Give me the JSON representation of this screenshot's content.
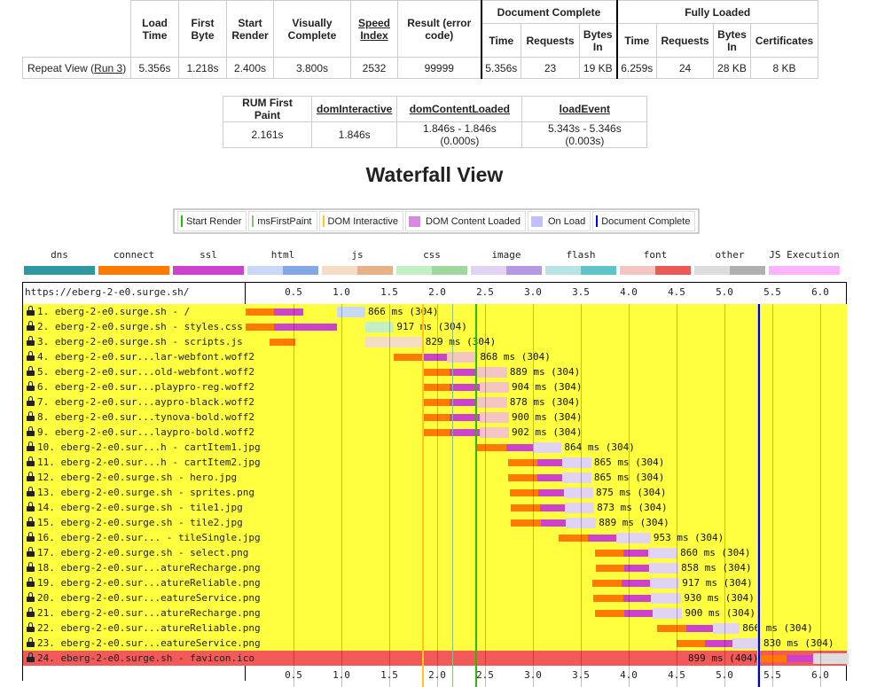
{
  "summary": {
    "headers": [
      "Load Time",
      "First Byte",
      "Start Render",
      "Visually Complete",
      "Speed Index",
      "Result (error code)"
    ],
    "groups": {
      "doc_complete": "Document Complete",
      "fully_loaded": "Fully Loaded"
    },
    "doc_headers": [
      "Time",
      "Requests",
      "Bytes In"
    ],
    "full_headers": [
      "Time",
      "Requests",
      "Bytes In",
      "Certificates"
    ],
    "row_label": "Repeat View (",
    "row_link": "Run 3",
    "row_label_end": ")",
    "values": [
      "5.356s",
      "1.218s",
      "2.400s",
      "3.800s",
      "2532",
      "99999"
    ],
    "doc_values": [
      "5.356s",
      "23",
      "19 KB"
    ],
    "full_values": [
      "6.259s",
      "24",
      "28 KB",
      "8 KB"
    ]
  },
  "rum": {
    "headers": [
      "RUM First Paint",
      "domInteractive",
      "domContentLoaded",
      "loadEvent"
    ],
    "values": [
      "2.161s",
      "1.846s",
      "1.846s - 1.846s (0.000s)",
      "5.343s - 5.346s (0.003s)"
    ]
  },
  "title": "Waterfall View",
  "legend": [
    {
      "label": "Start Render",
      "color": "#28bc00",
      "kind": "line"
    },
    {
      "label": "msFirstPaint",
      "color": "#8fbc83",
      "kind": "line"
    },
    {
      "label": "DOM Interactive",
      "color": "#ffc61a",
      "kind": "line"
    },
    {
      "label": "DOM Content Loaded",
      "color": "#d888df",
      "kind": "box"
    },
    {
      "label": "On Load",
      "color": "#c0c0ff",
      "kind": "box"
    },
    {
      "label": "Document Complete",
      "color": "#0000ff",
      "kind": "line"
    }
  ],
  "types": [
    {
      "label": "dns",
      "colors": [
        "#30979e"
      ]
    },
    {
      "label": "connect",
      "colors": [
        "#ff7b00"
      ]
    },
    {
      "label": "ssl",
      "colors": [
        "#cc42cd"
      ]
    },
    {
      "label": "html",
      "colors": [
        "#c9d8f4",
        "#82a8e6"
      ]
    },
    {
      "label": "js",
      "colors": [
        "#f4dcc5",
        "#e6b286"
      ]
    },
    {
      "label": "css",
      "colors": [
        "#c4efc4",
        "#9ed89e"
      ]
    },
    {
      "label": "image",
      "colors": [
        "#e0d3f4",
        "#b59ae3"
      ]
    },
    {
      "label": "flash",
      "colors": [
        "#b8e3e5",
        "#5ec4c7"
      ]
    },
    {
      "label": "font",
      "colors": [
        "#f4c5c2",
        "#eb5b55"
      ]
    },
    {
      "label": "other",
      "colors": [
        "#dddddd",
        "#b0b0b0"
      ]
    },
    {
      "label": "JS Execution",
      "colors": [
        "#ffb3ff"
      ]
    }
  ],
  "waterfall": {
    "root_url": "https://eberg-2-e0.surge.sh/",
    "ticks": [
      "0.5",
      "1.0",
      "1.5",
      "2.0",
      "2.5",
      "3.0",
      "3.5",
      "4.0",
      "4.5",
      "5.0",
      "5.5",
      "6.0"
    ],
    "markers": {
      "start_render": 2.4,
      "first_paint": 2.161,
      "dom_interactive": 1.846,
      "on_load": 5.343,
      "doc_complete": 5.356
    },
    "requests": [
      {
        "label": "1. eberg-2-e0.surge.sh - /",
        "start": 0.0,
        "connect": 0.3,
        "ssl": 0.6,
        "wait": 0.95,
        "end": 0.95,
        "cache_start": 0.95,
        "cache_end": 1.25,
        "text": "866 ms (304)",
        "type": "html"
      },
      {
        "label": "2. eberg-2-e0.surge.sh - styles.css",
        "start": 0.0,
        "connect": 0.3,
        "ssl": 0.95,
        "wait": 0.95,
        "end": 0.95,
        "cache_start": 1.25,
        "cache_end": 1.55,
        "text": "917 ms (304)",
        "type": "css"
      },
      {
        "label": "3. eberg-2-e0.surge.sh - scripts.js",
        "start": 0.25,
        "connect": 0.52,
        "ssl": 0.52,
        "wait": 0.52,
        "end": 0.52,
        "cache_start": 1.25,
        "cache_end": 1.85,
        "split": 1.55,
        "text": "829 ms (304)",
        "type": "js"
      },
      {
        "label": "4. eberg-2-e0.sur...lar-webfont.woff2",
        "start": 1.55,
        "connect": 1.85,
        "ssl": 2.1,
        "wait": 2.1,
        "end": 2.1,
        "cache_start": 2.1,
        "cache_end": 2.42,
        "text": "868 ms (304)",
        "type": "font"
      },
      {
        "label": "5. eberg-2-e0.sur...old-webfont.woff2",
        "start": 1.85,
        "connect": 2.13,
        "ssl": 2.42,
        "wait": 2.42,
        "end": 2.42,
        "cache_start": 2.42,
        "cache_end": 2.73,
        "text": "889 ms (304)",
        "type": "font"
      },
      {
        "label": "6. eberg-2-e0.sur...playpro-reg.woff2",
        "start": 1.85,
        "connect": 2.13,
        "ssl": 2.44,
        "wait": 2.44,
        "end": 2.44,
        "cache_start": 2.44,
        "cache_end": 2.75,
        "text": "904 ms (304)",
        "type": "font"
      },
      {
        "label": "7. eberg-2-e0.sur...aypro-black.woff2",
        "start": 1.85,
        "connect": 2.13,
        "ssl": 2.42,
        "wait": 2.42,
        "end": 2.42,
        "cache_start": 2.42,
        "cache_end": 2.73,
        "text": "878 ms (304)",
        "type": "font"
      },
      {
        "label": "8. eberg-2-e0.sur...tynova-bold.woff2",
        "start": 1.85,
        "connect": 2.13,
        "ssl": 2.44,
        "wait": 2.44,
        "end": 2.44,
        "cache_start": 2.44,
        "cache_end": 2.75,
        "text": "900 ms (304)",
        "type": "font"
      },
      {
        "label": "9. eberg-2-e0.sur...laypro-bold.woff2",
        "start": 1.85,
        "connect": 2.13,
        "ssl": 2.44,
        "wait": 2.44,
        "end": 2.44,
        "cache_start": 2.44,
        "cache_end": 2.75,
        "text": "902 ms (304)",
        "type": "font"
      },
      {
        "label": "10. eberg-2-e0.sur...h - cartItem1.jpg",
        "start": 2.42,
        "connect": 2.72,
        "ssl": 3.0,
        "wait": 3.0,
        "end": 3.0,
        "cache_start": 3.0,
        "cache_end": 3.3,
        "text": "864 ms (304)",
        "type": "image"
      },
      {
        "label": "11. eberg-2-e0.sur...h - cartItem2.jpg",
        "start": 2.74,
        "connect": 3.05,
        "ssl": 3.31,
        "wait": 3.31,
        "end": 3.31,
        "cache_start": 3.31,
        "cache_end": 3.61,
        "text": "865 ms (304)",
        "type": "image"
      },
      {
        "label": "12. eberg-2-e0.surge.sh - hero.jpg",
        "start": 2.74,
        "connect": 3.05,
        "ssl": 3.31,
        "wait": 3.31,
        "end": 3.31,
        "cache_start": 3.31,
        "cache_end": 3.61,
        "text": "865 ms (304)",
        "type": "image"
      },
      {
        "label": "13. eberg-2-e0.surge.sh - sprites.png",
        "start": 2.76,
        "connect": 3.06,
        "ssl": 3.32,
        "wait": 3.32,
        "end": 3.32,
        "cache_start": 3.32,
        "cache_end": 3.63,
        "text": "875 ms (304)",
        "type": "image"
      },
      {
        "label": "14. eberg-2-e0.surge.sh - tile1.jpg",
        "start": 2.77,
        "connect": 3.07,
        "ssl": 3.33,
        "wait": 3.33,
        "end": 3.33,
        "cache_start": 3.33,
        "cache_end": 3.64,
        "text": "873 ms (304)",
        "type": "image"
      },
      {
        "label": "15. eberg-2-e0.surge.sh - tile2.jpg",
        "start": 2.77,
        "connect": 3.08,
        "ssl": 3.34,
        "wait": 3.34,
        "end": 3.34,
        "cache_start": 3.34,
        "cache_end": 3.66,
        "text": "889 ms (304)",
        "type": "image"
      },
      {
        "label": "16. eberg-2-e0.sur... - tileSingle.jpg",
        "start": 3.27,
        "connect": 3.57,
        "ssl": 3.87,
        "wait": 3.87,
        "end": 3.87,
        "cache_start": 3.87,
        "cache_end": 4.23,
        "text": "953 ms (304)",
        "type": "image"
      },
      {
        "label": "17. eberg-2-e0.surge.sh - select.png",
        "start": 3.65,
        "connect": 3.94,
        "ssl": 4.2,
        "wait": 4.2,
        "end": 4.2,
        "cache_start": 4.2,
        "cache_end": 4.51,
        "text": "860 ms (304)",
        "type": "image"
      },
      {
        "label": "18. eberg-2-e0.sur...atureRecharge.png",
        "start": 3.66,
        "connect": 3.95,
        "ssl": 4.21,
        "wait": 4.21,
        "end": 4.21,
        "cache_start": 4.21,
        "cache_end": 4.52,
        "text": "858 ms (304)",
        "type": "image"
      },
      {
        "label": "19. eberg-2-e0.sur...atureReliable.png",
        "start": 3.62,
        "connect": 3.93,
        "ssl": 4.22,
        "wait": 4.22,
        "end": 4.22,
        "cache_start": 4.22,
        "cache_end": 4.53,
        "text": "917 ms (304)",
        "type": "image"
      },
      {
        "label": "20. eberg-2-e0.sur...eatureService.png",
        "start": 3.63,
        "connect": 3.94,
        "ssl": 4.23,
        "wait": 4.23,
        "end": 4.23,
        "cache_start": 4.23,
        "cache_end": 4.55,
        "text": "930 ms (304)",
        "type": "image"
      },
      {
        "label": "21. eberg-2-e0.sur...atureRecharge.png",
        "start": 3.65,
        "connect": 3.95,
        "ssl": 4.25,
        "wait": 4.25,
        "end": 4.25,
        "cache_start": 4.25,
        "cache_end": 4.56,
        "text": "900 ms (304)",
        "type": "image"
      },
      {
        "label": "22. eberg-2-e0.sur...atureReliable.png",
        "start": 4.3,
        "connect": 4.6,
        "ssl": 4.88,
        "wait": 4.88,
        "end": 4.88,
        "cache_start": 4.88,
        "cache_end": 5.16,
        "text": "866 ms (304)",
        "type": "image"
      },
      {
        "label": "23. eberg-2-e0.sur...eatureService.png",
        "start": 4.5,
        "connect": 4.8,
        "ssl": 5.08,
        "wait": 5.08,
        "end": 5.08,
        "cache_start": 5.08,
        "cache_end": 5.38,
        "text": "830 ms (304)",
        "type": "image"
      },
      {
        "label": "24. eberg-2-e0.surge.sh - favicon.ico",
        "start": 5.36,
        "connect": 5.65,
        "ssl": 5.93,
        "wait": 5.93,
        "end": 5.93,
        "cache_start": 5.93,
        "cache_end": 6.3,
        "text": "899 ms (404)",
        "type": "other",
        "error": true
      }
    ]
  },
  "colors": {
    "row_bg": "#ffff40",
    "row_error_bg": "#f25a5a",
    "connect": "#ff7b00",
    "ssl": "#cc42cd"
  }
}
